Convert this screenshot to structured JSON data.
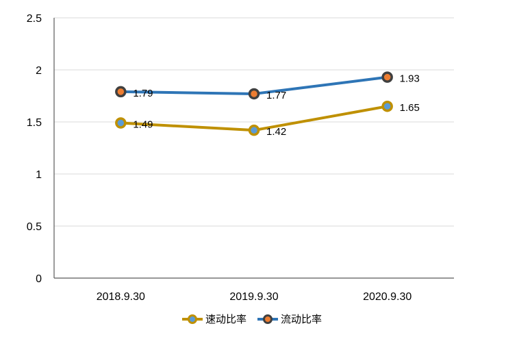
{
  "chart_data": {
    "type": "line",
    "categories": [
      "2018.9.30",
      "2019.9.30",
      "2020.9.30"
    ],
    "series": [
      {
        "name": "速动比率",
        "values": [
          1.49,
          1.42,
          1.65
        ],
        "color": "#BF9000",
        "marker_fill": "#5B9BD5",
        "marker_border": "#BF9000"
      },
      {
        "name": "流动比率",
        "values": [
          1.79,
          1.77,
          1.93
        ],
        "color": "#2E75B6",
        "marker_fill": "#ED7D31",
        "marker_border": "#404040"
      }
    ],
    "data_labels": [
      [
        "1.49",
        "1.42",
        "1.65"
      ],
      [
        "1.79",
        "1.77",
        "1.93"
      ]
    ],
    "y_ticks": [
      "0",
      "0.5",
      "1",
      "1.5",
      "2",
      "2.5"
    ],
    "ylim": [
      0,
      2.5
    ],
    "grid": true,
    "legend_position": "bottom",
    "title": "",
    "xlabel": "",
    "ylabel": ""
  }
}
